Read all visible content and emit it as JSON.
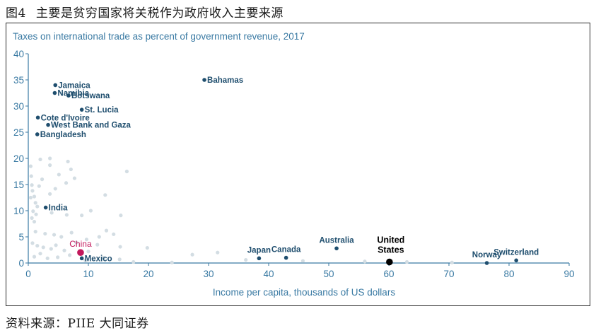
{
  "caption": {
    "figure_number": "图4",
    "title": "主要是贫穷国家将关税作为政府收入主要来源"
  },
  "source": "资料来源：PIIE 大同证券",
  "colors": {
    "axis": "#3a7aa3",
    "highlight": "#1f4e6e",
    "background_points": "#d3dde3",
    "china": "#c2185b",
    "united_states": "#000000"
  },
  "chart_data": {
    "type": "scatter",
    "title": "Taxes on international trade as percent of government revenue, 2017",
    "xlabel": "Income per capita, thousands of US dollars",
    "ylabel": "",
    "xlim": [
      0,
      90
    ],
    "ylim": [
      0,
      40
    ],
    "xticks": [
      "0",
      "10",
      "20",
      "30",
      "40",
      "50",
      "60",
      "70",
      "80",
      "90"
    ],
    "yticks": [
      "0",
      "5",
      "10",
      "15",
      "20",
      "25",
      "30",
      "35",
      "40"
    ],
    "highlighted": [
      {
        "name": "Jamaica",
        "x": 4.5,
        "y": 34.0
      },
      {
        "name": "Namibia",
        "x": 4.4,
        "y": 32.5
      },
      {
        "name": "Botswana",
        "x": 6.7,
        "y": 32.0
      },
      {
        "name": "Bahamas",
        "x": 29.3,
        "y": 35.0
      },
      {
        "name": "St. Lucia",
        "x": 8.9,
        "y": 29.3
      },
      {
        "name": "Cote d'Ivoire",
        "x": 1.6,
        "y": 27.8
      },
      {
        "name": "West Bank and Gaza",
        "x": 3.3,
        "y": 26.4
      },
      {
        "name": "Bangladesh",
        "x": 1.5,
        "y": 24.6
      },
      {
        "name": "India",
        "x": 2.9,
        "y": 10.6
      },
      {
        "name": "China",
        "x": 8.7,
        "y": 2.0
      },
      {
        "name": "Mexico",
        "x": 8.9,
        "y": 0.9
      },
      {
        "name": "Japan",
        "x": 38.4,
        "y": 0.9
      },
      {
        "name": "Canada",
        "x": 42.9,
        "y": 1.0
      },
      {
        "name": "Australia",
        "x": 51.3,
        "y": 2.8
      },
      {
        "name": "United States",
        "x": 60.1,
        "y": 0.2
      },
      {
        "name": "Norway",
        "x": 76.3,
        "y": 0.0
      },
      {
        "name": "Switzerland",
        "x": 81.2,
        "y": 0.5
      }
    ],
    "other_countries": [
      [
        0.4,
        18.5
      ],
      [
        0.5,
        16.6
      ],
      [
        0.6,
        14.9
      ],
      [
        0.7,
        13.8
      ],
      [
        0.4,
        12.5
      ],
      [
        1.0,
        12.7
      ],
      [
        0.8,
        9.9
      ],
      [
        1.2,
        11.5
      ],
      [
        1.5,
        10.8
      ],
      [
        2.0,
        19.8
      ],
      [
        3.6,
        20.0
      ],
      [
        3.6,
        18.7
      ],
      [
        6.6,
        19.4
      ],
      [
        7.1,
        17.9
      ],
      [
        5.1,
        16.9
      ],
      [
        2.3,
        16.0
      ],
      [
        1.8,
        14.7
      ],
      [
        4.5,
        14.2
      ],
      [
        3.6,
        13.2
      ],
      [
        6.3,
        15.3
      ],
      [
        7.7,
        16.2
      ],
      [
        12.8,
        13.0
      ],
      [
        16.4,
        17.5
      ],
      [
        1.3,
        9.3
      ],
      [
        0.6,
        8.6
      ],
      [
        1.0,
        7.9
      ],
      [
        3.9,
        9.6
      ],
      [
        6.4,
        9.2
      ],
      [
        8.9,
        9.1
      ],
      [
        10.4,
        10.0
      ],
      [
        15.4,
        9.1
      ],
      [
        1.2,
        6.0
      ],
      [
        2.8,
        5.6
      ],
      [
        4.3,
        5.4
      ],
      [
        5.5,
        5.0
      ],
      [
        7.2,
        5.8
      ],
      [
        9.7,
        4.5
      ],
      [
        11.8,
        5.0
      ],
      [
        13.0,
        6.2
      ],
      [
        14.2,
        5.5
      ],
      [
        0.7,
        3.8
      ],
      [
        1.5,
        3.3
      ],
      [
        2.5,
        3.0
      ],
      [
        3.8,
        2.7
      ],
      [
        4.6,
        3.4
      ],
      [
        6.0,
        2.4
      ],
      [
        8.0,
        3.9
      ],
      [
        10.0,
        2.2
      ],
      [
        11.5,
        3.5
      ],
      [
        15.3,
        3.1
      ],
      [
        19.8,
        2.9
      ],
      [
        1.0,
        1.2
      ],
      [
        2.0,
        1.8
      ],
      [
        3.2,
        0.9
      ],
      [
        4.9,
        1.1
      ],
      [
        6.9,
        1.5
      ],
      [
        9.5,
        0.5
      ],
      [
        12.5,
        1.0
      ],
      [
        15.2,
        0.7
      ],
      [
        17.5,
        0.2
      ],
      [
        23.9,
        0.1
      ],
      [
        27.3,
        1.6
      ],
      [
        31.5,
        2.0
      ],
      [
        36.2,
        0.6
      ],
      [
        45.7,
        0.4
      ],
      [
        56.0,
        0.3
      ],
      [
        63.0,
        0.2
      ],
      [
        70.5,
        0.1
      ]
    ]
  }
}
